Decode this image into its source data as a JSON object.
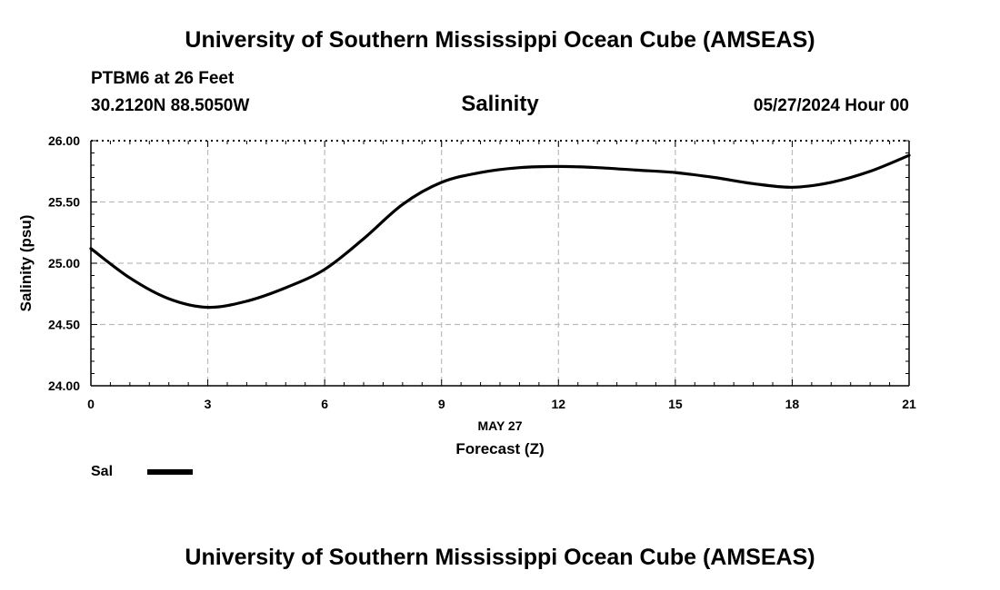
{
  "header": {
    "title": "University of Southern Mississippi Ocean Cube (AMSEAS)",
    "station": "PTBM6 at 26 Feet",
    "coords": "30.2120N  88.5050W",
    "datetime": "05/27/2024 Hour 00"
  },
  "footer": {
    "title": "University of Southern Mississippi Ocean Cube (AMSEAS)"
  },
  "legend": {
    "label": "Sal",
    "color": "#000000"
  },
  "chart_data": {
    "type": "line",
    "title": "Salinity",
    "xlabel": "Forecast (Z)",
    "xdate_label": "MAY 27",
    "ylabel": "Salinity (psu)",
    "xlim": [
      0,
      21
    ],
    "ylim": [
      24.0,
      26.0
    ],
    "xticks": [
      0,
      3,
      6,
      9,
      12,
      15,
      18,
      21
    ],
    "yticks": [
      24.0,
      24.5,
      25.0,
      25.5,
      26.0
    ],
    "ytick_labels": [
      "24.00",
      "24.50",
      "25.00",
      "25.50",
      "26.00"
    ],
    "grid": true,
    "series": [
      {
        "name": "Sal",
        "x": [
          0,
          1,
          2,
          3,
          4,
          5,
          6,
          7,
          8,
          9,
          10,
          11,
          12,
          13,
          14,
          15,
          16,
          17,
          18,
          19,
          20,
          21
        ],
        "values": [
          25.12,
          24.88,
          24.71,
          24.64,
          24.69,
          24.8,
          24.95,
          25.2,
          25.48,
          25.66,
          25.74,
          25.78,
          25.79,
          25.78,
          25.76,
          25.74,
          25.7,
          25.65,
          25.62,
          25.66,
          25.75,
          25.88
        ]
      }
    ]
  }
}
